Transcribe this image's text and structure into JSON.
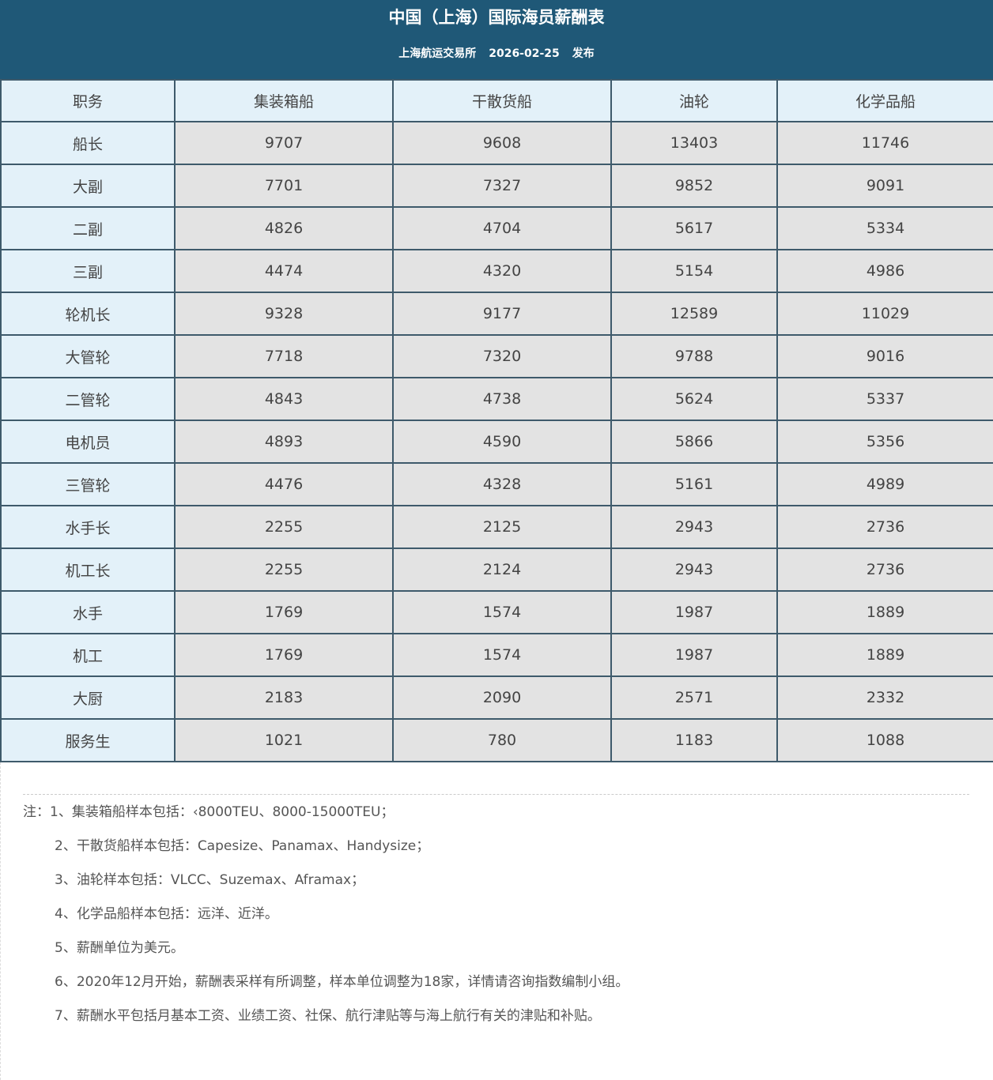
{
  "header": {
    "title": "中国（上海）国际海员薪酬表",
    "publisher": "上海航运交易所",
    "date": "2026-02-25",
    "action": "发布"
  },
  "table": {
    "columns": [
      "职务",
      "集装箱船",
      "干散货船",
      "油轮",
      "化学品船"
    ],
    "rows": [
      [
        "船长",
        "9707",
        "9608",
        "13403",
        "11746"
      ],
      [
        "大副",
        "7701",
        "7327",
        "9852",
        "9091"
      ],
      [
        "二副",
        "4826",
        "4704",
        "5617",
        "5334"
      ],
      [
        "三副",
        "4474",
        "4320",
        "5154",
        "4986"
      ],
      [
        "轮机长",
        "9328",
        "9177",
        "12589",
        "11029"
      ],
      [
        "大管轮",
        "7718",
        "7320",
        "9788",
        "9016"
      ],
      [
        "二管轮",
        "4843",
        "4738",
        "5624",
        "5337"
      ],
      [
        "电机员",
        "4893",
        "4590",
        "5866",
        "5356"
      ],
      [
        "三管轮",
        "4476",
        "4328",
        "5161",
        "4989"
      ],
      [
        "水手长",
        "2255",
        "2125",
        "2943",
        "2736"
      ],
      [
        "机工长",
        "2255",
        "2124",
        "2943",
        "2736"
      ],
      [
        "水手",
        "1769",
        "1574",
        "1987",
        "1889"
      ],
      [
        "机工",
        "1769",
        "1574",
        "1987",
        "1889"
      ],
      [
        "大厨",
        "2183",
        "2090",
        "2571",
        "2332"
      ],
      [
        "服务生",
        "1021",
        "780",
        "1183",
        "1088"
      ]
    ]
  },
  "notes": [
    "注：1、集装箱船样本包括：‹8000TEU、8000-15000TEU；",
    "2、干散货船样本包括：Capesize、Panamax、Handysize；",
    "3、油轮样本包括：VLCC、Suzemax、Aframax；",
    "4、化学品船样本包括：远洋、近洋。",
    "5、薪酬单位为美元。",
    "6、2020年12月开始，薪酬表采样有所调整，样本单位调整为18家，详情请咨询指数编制小组。",
    "7、薪酬水平包括月基本工资、业绩工资、社保、航行津贴等与海上航行有关的津贴和补贴。"
  ],
  "colors": {
    "header_bg": "#1f5877",
    "label_cell_bg": "#e3f1f9",
    "value_cell_bg": "#e3e3e3",
    "border": "#3e5a6b"
  }
}
